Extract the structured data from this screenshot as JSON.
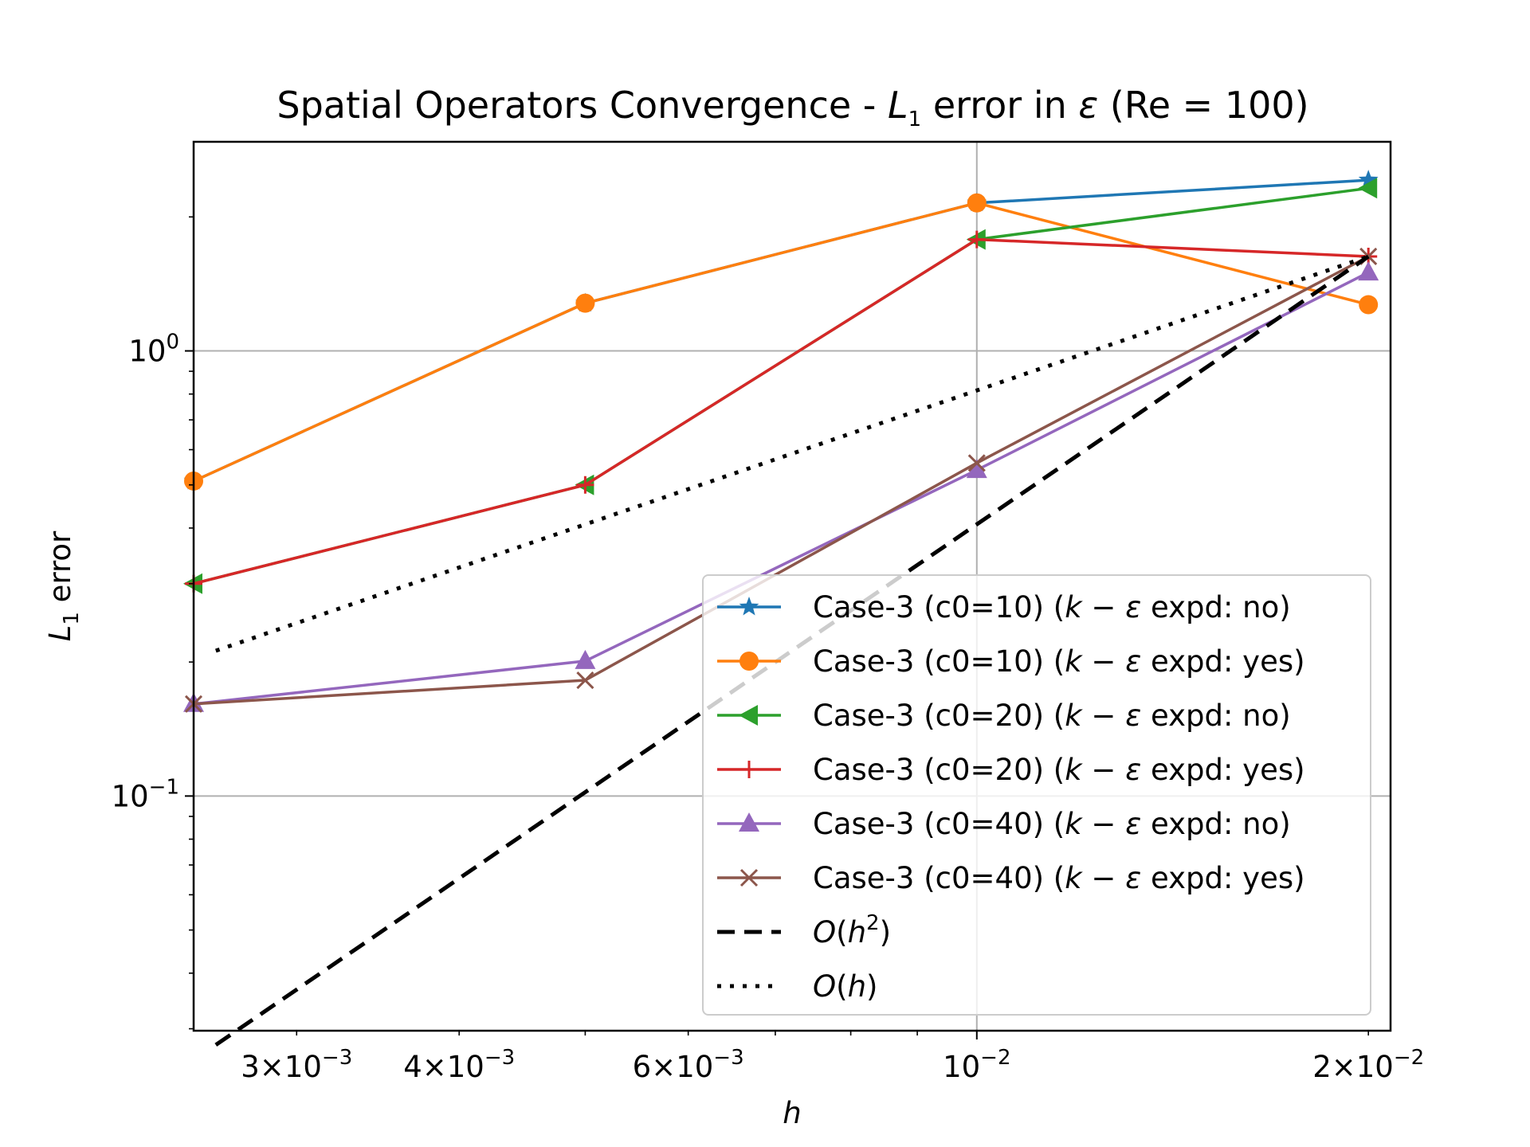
{
  "chart_data": {
    "type": "line",
    "title": {
      "prefix": "Spatial Operators Convergence - ",
      "l_sym": "L",
      "l_sub": "1",
      "middle": " error in ",
      "eps": "ε",
      "suffix": " (Re = 100)"
    },
    "xlabel": "h",
    "ylabel": {
      "l_sym": "L",
      "l_sub": "1",
      "rest": " error"
    },
    "x_scale": "log",
    "y_scale": "log",
    "xlim": [
      0.0025,
      0.0208
    ],
    "ylim": [
      0.0297,
      2.95
    ],
    "grid": true,
    "legend_position": "lower-right",
    "x_ticks": [
      {
        "value": 0.003,
        "mant": "3",
        "exp": "−3"
      },
      {
        "value": 0.004,
        "mant": "4",
        "exp": "−3"
      },
      {
        "value": 0.006,
        "mant": "6",
        "exp": "−3"
      },
      {
        "value": 0.01,
        "mant": "",
        "exp": "−2"
      },
      {
        "value": 0.02,
        "mant": "2",
        "exp": "−2"
      }
    ],
    "x_major_ticks": [
      0.01
    ],
    "x_minor_ticks": [
      0.003,
      0.004,
      0.005,
      0.006,
      0.007,
      0.008,
      0.009,
      0.02
    ],
    "y_ticks": [
      {
        "value": 1,
        "exp": "0"
      },
      {
        "value": 0.1,
        "exp": "−1"
      }
    ],
    "y_minor_ticks": [
      0.03,
      0.04,
      0.05,
      0.06,
      0.07,
      0.08,
      0.09,
      0.2,
      0.3,
      0.4,
      0.5,
      0.6,
      0.7,
      0.8,
      0.9,
      2
    ],
    "x": [
      0.0025,
      0.005,
      0.01,
      0.02
    ],
    "series": [
      {
        "name": "Case-3 (c0=10) ",
        "expd": "no",
        "color": "#1f77b4",
        "marker": "star",
        "dash": "solid",
        "values": [
          0.51,
          1.28,
          2.15,
          2.42
        ]
      },
      {
        "name": "Case-3 (c0=10) ",
        "expd": "yes",
        "color": "#ff7f0e",
        "marker": "circle",
        "dash": "solid",
        "values": [
          0.51,
          1.28,
          2.15,
          1.27
        ]
      },
      {
        "name": "Case-3 (c0=20) ",
        "expd": "no",
        "color": "#2ca02c",
        "marker": "triangle-left",
        "dash": "solid",
        "values": [
          0.3,
          0.5,
          1.78,
          2.32
        ]
      },
      {
        "name": "Case-3 (c0=20) ",
        "expd": "yes",
        "color": "#d62728",
        "marker": "plus",
        "dash": "solid",
        "values": [
          0.3,
          0.5,
          1.78,
          1.63
        ]
      },
      {
        "name": "Case-3 (c0=40) ",
        "expd": "no",
        "color": "#9467bd",
        "marker": "triangle-up",
        "dash": "solid",
        "values": [
          0.161,
          0.201,
          0.54,
          1.5
        ]
      },
      {
        "name": "Case-3 (c0=40) ",
        "expd": "yes",
        "color": "#8c564b",
        "marker": "x",
        "dash": "solid",
        "values": [
          0.161,
          0.182,
          0.56,
          1.63
        ]
      },
      {
        "name": "O(h²)",
        "color": "#000000",
        "marker": "none",
        "dash": "dashed",
        "x": [
          0.0026,
          0.02
        ],
        "values": [
          0.0276,
          1.63
        ]
      },
      {
        "name": "O(h)",
        "color": "#000000",
        "marker": "none",
        "dash": "dotted",
        "x": [
          0.0026,
          0.02
        ],
        "values": [
          0.212,
          1.63
        ]
      }
    ],
    "legend_expd_label": " expd: ",
    "legend_k_eps": {
      "k": "k",
      "minus": " − ",
      "eps": "ε"
    },
    "legend_ref": [
      {
        "o": "O",
        "open": "(",
        "h": "h",
        "sup": "2",
        "close": ")"
      },
      {
        "o": "O",
        "open": "(",
        "h": "h",
        "sup": "",
        "close": ")"
      }
    ]
  }
}
